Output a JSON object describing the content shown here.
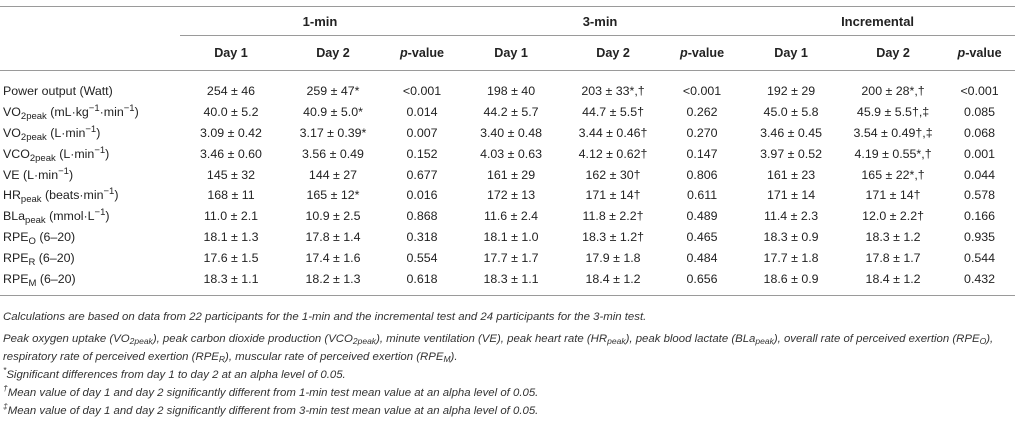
{
  "groups": [
    "1-min",
    "3-min",
    "Incremental"
  ],
  "subheaders": {
    "day1": "Day 1",
    "day2": "Day 2",
    "p_prefix": "p",
    "p_suffix": "-value"
  },
  "rows": [
    {
      "label": "Power output (Watt)",
      "c": [
        "254 ± 46",
        "259 ± 47*",
        "<0.001",
        "198 ± 40",
        "203 ± 33*,†",
        "<0.001",
        "192 ± 29",
        "200 ± 28*,†",
        "<0.001"
      ]
    },
    {
      "label_pre": "VO",
      "label_sub": "2peak",
      "label_mid": " (mL·kg",
      "label_sup": "−1",
      "label_mid2": "·min",
      "label_sup2": "−1",
      "label_end": ")",
      "c": [
        "40.0 ± 5.2",
        "40.9 ± 5.0*",
        "0.014",
        "44.2 ± 5.7",
        "44.7 ± 5.5†",
        "0.262",
        "45.0 ± 5.8",
        "45.9 ± 5.5†,‡",
        "0.085"
      ]
    },
    {
      "label_pre": "VO",
      "label_sub": "2peak",
      "label_mid": " (L·min",
      "label_sup": "−1",
      "label_end": ")",
      "c": [
        "3.09 ± 0.42",
        "3.17 ± 0.39*",
        "0.007",
        "3.40 ± 0.48",
        "3.44 ± 0.46†",
        "0.270",
        "3.46 ± 0.45",
        "3.54 ± 0.49†,‡",
        "0.068"
      ]
    },
    {
      "label_pre": "VCO",
      "label_sub": "2peak",
      "label_mid": " (L·min",
      "label_sup": "−1",
      "label_end": ")",
      "c": [
        "3.46 ± 0.60",
        "3.56 ± 0.49",
        "0.152",
        "4.03 ± 0.63",
        "4.12 ± 0.62†",
        "0.147",
        "3.97 ± 0.52",
        "4.19 ± 0.55*,†",
        "0.001"
      ]
    },
    {
      "label_pre": "VE (L·min",
      "label_sup": "−1",
      "label_end": ")",
      "c": [
        "145 ± 32",
        "144 ± 27",
        "0.677",
        "161 ± 29",
        "162 ± 30†",
        "0.806",
        "161 ± 23",
        "165 ± 22*,†",
        "0.044"
      ]
    },
    {
      "label_pre": "HR",
      "label_sub": "peak",
      "label_mid": " (beats·min",
      "label_sup": "−1",
      "label_end": ")",
      "c": [
        "168 ± 11",
        "165 ± 12*",
        "0.016",
        "172 ± 13",
        "171 ± 14†",
        "0.611",
        "171 ± 14",
        "171 ± 14†",
        "0.578"
      ]
    },
    {
      "label_pre": "BLa",
      "label_sub": "peak",
      "label_mid": " (mmol·L",
      "label_sup": "−1",
      "label_end": ")",
      "c": [
        "11.0 ± 2.1",
        "10.9 ± 2.5",
        "0.868",
        "11.6 ± 2.4",
        "11.8 ± 2.2†",
        "0.489",
        "11.4 ± 2.3",
        "12.0 ± 2.2†",
        "0.166"
      ]
    },
    {
      "label_pre": "RPE",
      "label_sub": "O",
      "label_end": " (6–20)",
      "c": [
        "18.1 ± 1.3",
        "17.8 ± 1.4",
        "0.318",
        "18.1 ± 1.0",
        "18.3 ± 1.2†",
        "0.465",
        "18.3 ± 0.9",
        "18.3 ± 1.2",
        "0.935"
      ]
    },
    {
      "label_pre": "RPE",
      "label_sub": "R",
      "label_end": " (6–20)",
      "c": [
        "17.6 ± 1.5",
        "17.4 ± 1.6",
        "0.554",
        "17.7 ± 1.7",
        "17.9 ± 1.8",
        "0.484",
        "17.7 ± 1.8",
        "17.8 ± 1.7",
        "0.544"
      ]
    },
    {
      "label_pre": "RPE",
      "label_sub": "M",
      "label_end": " (6–20)",
      "c": [
        "18.3 ± 1.1",
        "18.2 ± 1.3",
        "0.618",
        "18.3 ± 1.1",
        "18.4 ± 1.2",
        "0.656",
        "18.6 ± 0.9",
        "18.4 ± 1.2",
        "0.432"
      ]
    }
  ],
  "notes": {
    "calc": "Calculations are based on data from 22 participants for the 1-min and the incremental test and 24 participants for the 3-min test.",
    "abbr": [
      "Peak oxygen uptake (VO",
      "2peak",
      "), peak carbon dioxide production (VCO",
      "2peak",
      "), minute ventilation (VE), peak heart rate (HR",
      "peak",
      "), peak blood lactate (BLa",
      "peak",
      "), overall rate of perceived exertion (RPE",
      "O",
      "), respiratory rate of perceived exertion (RPE",
      "R",
      "), muscular rate of perceived exertion (RPE",
      "M",
      ")."
    ],
    "star_mark": "*",
    "star": "Significant differences from day 1 to day 2 at an alpha level of 0.05.",
    "dagger_mark": "†",
    "dagger": "Mean value of day 1 and day 2 significantly different from 1-min test mean value at an alpha level of 0.05.",
    "ddagger_mark": "‡",
    "ddagger": "Mean value of day 1 and day 2 significantly different from 3-min test mean value at an alpha level of 0.05."
  }
}
